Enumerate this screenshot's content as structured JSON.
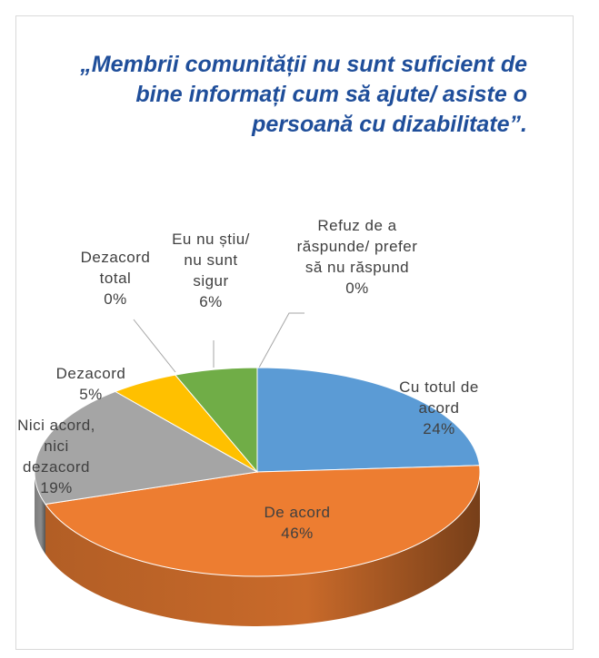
{
  "chart_data": {
    "type": "pie3d",
    "title": "„Membrii comunității nu sunt suficient de bine informați cum să ajute/ asiste o persoană cu dizabilitate”.",
    "categories": [
      "Cu totul de acord",
      "De acord",
      "Nici acord, nici dezacord",
      "Dezacord",
      "Dezacord total",
      "Eu nu știu/ nu sunt sigur",
      "Refuz de a răspunde/ prefer să nu răspund"
    ],
    "values": [
      24,
      46,
      19,
      5,
      0,
      6,
      0
    ],
    "value_labels": [
      "24%",
      "46%",
      "19%",
      "5%",
      "0%",
      "6%",
      "0%"
    ],
    "colors": [
      "#5b9bd5",
      "#ed7d31",
      "#a5a5a5",
      "#ffc000",
      "#4472c4",
      "#70ad47",
      "#264478"
    ]
  }
}
